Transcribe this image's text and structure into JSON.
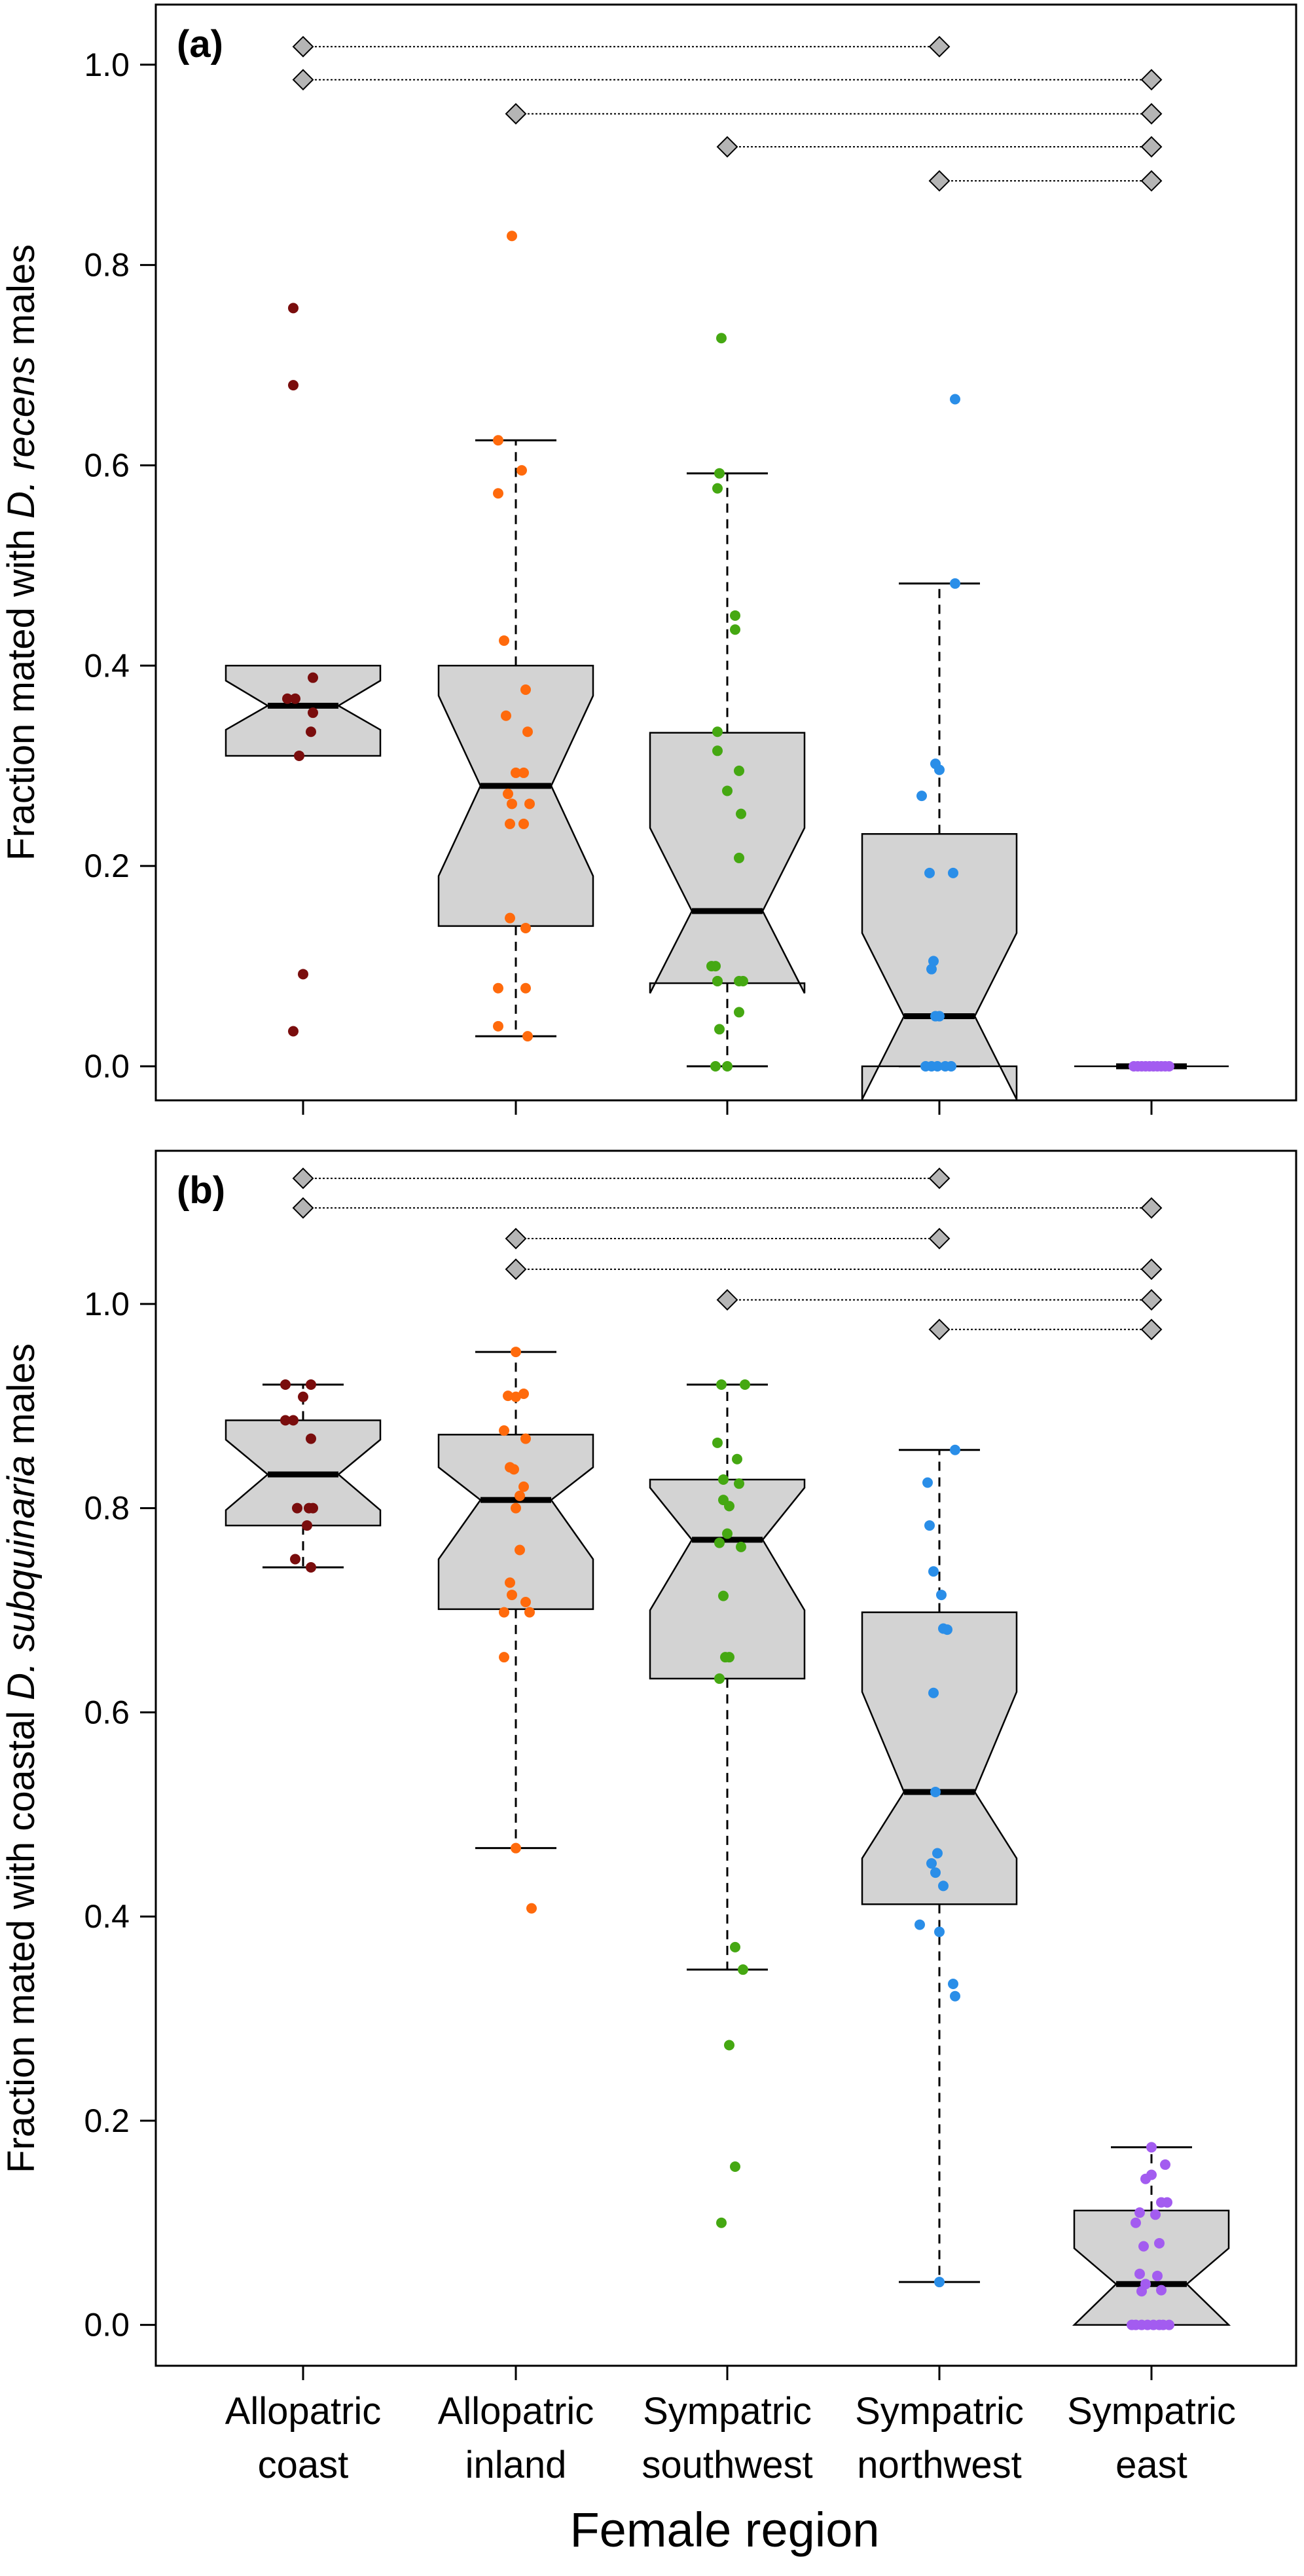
{
  "chart_data": {
    "type": "boxplot",
    "xlabel": "Female region",
    "categories": [
      {
        "line1": "Allopatric",
        "line2": "coast"
      },
      {
        "line1": "Allopatric",
        "line2": "inland"
      },
      {
        "line1": "Sympatric",
        "line2": "southwest"
      },
      {
        "line1": "Sympatric",
        "line2": "northwest"
      },
      {
        "line1": "Sympatric",
        "line2": "east"
      }
    ],
    "point_colors": [
      "#7a0d0d",
      "#ff6a0c",
      "#45a812",
      "#2a8ee8",
      "#a35cf0"
    ],
    "box_fill": "#d3d3d3",
    "panels": [
      {
        "tag": "(a)",
        "ylabel_parts": [
          "Fraction mated with ",
          "D. recens",
          " males"
        ],
        "ylim": [
          -0.034,
          1.06
        ],
        "yticks": [
          0.0,
          0.2,
          0.4,
          0.6,
          0.8,
          1.0
        ],
        "ytick_labels": [
          "0.0",
          "0.2",
          "0.4",
          "0.6",
          "0.8",
          "1.0"
        ],
        "boxes": [
          {
            "median": 0.36,
            "q1": 0.31,
            "q3": 0.4,
            "notch_lo": 0.336,
            "notch_hi": 0.385,
            "whisker_lo": null,
            "whisker_hi": null
          },
          {
            "median": 0.28,
            "q1": 0.14,
            "q3": 0.4,
            "notch_lo": 0.19,
            "notch_hi": 0.37,
            "whisker_lo": 0.03,
            "whisker_hi": 0.625
          },
          {
            "median": 0.155,
            "q1": 0.083,
            "q3": 0.333,
            "notch_lo": 0.073,
            "notch_hi": 0.238,
            "whisker_lo": 0.0,
            "whisker_hi": 0.592
          },
          {
            "median": 0.05,
            "q1": 0.0,
            "q3": 0.232,
            "notch_lo": -0.033,
            "notch_hi": 0.133,
            "whisker_lo": 0.0,
            "whisker_hi": 0.482
          },
          {
            "median": 0.0,
            "q1": 0.0,
            "q3": 0.0,
            "notch_lo": 0.0,
            "notch_hi": 0.0,
            "whisker_lo": null,
            "whisker_hi": null
          }
        ],
        "points": [
          [
            [
              -0.05,
              0.757
            ],
            [
              -0.05,
              0.68
            ],
            [
              0.05,
              0.388
            ],
            [
              -0.08,
              0.367
            ],
            [
              -0.04,
              0.367
            ],
            [
              0.05,
              0.353
            ],
            [
              0.04,
              0.334
            ],
            [
              -0.02,
              0.31
            ],
            [
              0.0,
              0.092
            ],
            [
              -0.05,
              0.035
            ]
          ],
          [
            [
              -0.02,
              0.829
            ],
            [
              -0.09,
              0.625
            ],
            [
              0.03,
              0.595
            ],
            [
              -0.09,
              0.572
            ],
            [
              -0.06,
              0.425
            ],
            [
              0.05,
              0.376
            ],
            [
              -0.05,
              0.35
            ],
            [
              0.06,
              0.334
            ],
            [
              0.0,
              0.293
            ],
            [
              0.04,
              0.293
            ],
            [
              -0.04,
              0.272
            ],
            [
              0.07,
              0.262
            ],
            [
              -0.02,
              0.262
            ],
            [
              0.04,
              0.242
            ],
            [
              -0.03,
              0.242
            ],
            [
              -0.03,
              0.148
            ],
            [
              0.05,
              0.138
            ],
            [
              0.05,
              0.078
            ],
            [
              -0.09,
              0.078
            ],
            [
              -0.09,
              0.04
            ],
            [
              0.06,
              0.03
            ]
          ],
          [
            [
              -0.03,
              0.727
            ],
            [
              -0.04,
              0.592
            ],
            [
              -0.05,
              0.577
            ],
            [
              0.04,
              0.45
            ],
            [
              0.04,
              0.436
            ],
            [
              -0.05,
              0.334
            ],
            [
              -0.05,
              0.315
            ],
            [
              0.06,
              0.295
            ],
            [
              0.0,
              0.275
            ],
            [
              0.07,
              0.252
            ],
            [
              0.06,
              0.208
            ],
            [
              -0.08,
              0.1
            ],
            [
              -0.06,
              0.1
            ],
            [
              -0.05,
              0.085
            ],
            [
              0.06,
              0.085
            ],
            [
              0.08,
              0.085
            ],
            [
              -0.05,
              0.085
            ],
            [
              0.06,
              0.054
            ],
            [
              -0.04,
              0.037
            ],
            [
              -0.06,
              0.0
            ],
            [
              0.0,
              0.0
            ]
          ],
          [
            [
              0.08,
              0.666
            ],
            [
              0.08,
              0.482
            ],
            [
              -0.02,
              0.302
            ],
            [
              0.0,
              0.296
            ],
            [
              -0.09,
              0.27
            ],
            [
              -0.05,
              0.193
            ],
            [
              0.07,
              0.193
            ],
            [
              -0.03,
              0.105
            ],
            [
              -0.04,
              0.097
            ],
            [
              0.0,
              0.05
            ],
            [
              -0.02,
              0.05
            ],
            [
              -0.07,
              0.0
            ],
            [
              -0.04,
              0.0
            ],
            [
              -0.01,
              0.0
            ],
            [
              0.03,
              0.0
            ],
            [
              0.06,
              0.0
            ]
          ],
          [
            [
              -0.09,
              0.0
            ],
            [
              -0.07,
              0.0
            ],
            [
              -0.05,
              0.0
            ],
            [
              -0.03,
              0.0
            ],
            [
              -0.01,
              0.0
            ],
            [
              0.01,
              0.0
            ],
            [
              0.03,
              0.0
            ],
            [
              0.05,
              0.0
            ],
            [
              0.07,
              0.0
            ],
            [
              0.09,
              0.0
            ]
          ]
        ],
        "comparisons": [
          {
            "from": 1,
            "to": 4,
            "y": 1.018
          },
          {
            "from": 1,
            "to": 5,
            "y": 0.985
          },
          {
            "from": 2,
            "to": 5,
            "y": 0.951
          },
          {
            "from": 3,
            "to": 5,
            "y": 0.918
          },
          {
            "from": 4,
            "to": 5,
            "y": 0.884
          }
        ]
      },
      {
        "tag": "(b)",
        "ylabel_parts": [
          "Fraction mated with coastal ",
          "D. subquinaria",
          " males"
        ],
        "ylim": [
          -0.04,
          1.15
        ],
        "yticks": [
          0.0,
          0.2,
          0.4,
          0.6,
          0.8,
          1.0
        ],
        "ytick_labels": [
          "0.0",
          "0.2",
          "0.4",
          "0.6",
          "0.8",
          "1.0"
        ],
        "boxes": [
          {
            "median": 0.833,
            "q1": 0.783,
            "q3": 0.886,
            "notch_lo": 0.798,
            "notch_hi": 0.867,
            "whisker_lo": 0.742,
            "whisker_hi": 0.921
          },
          {
            "median": 0.808,
            "q1": 0.701,
            "q3": 0.872,
            "notch_lo": 0.75,
            "notch_hi": 0.84,
            "whisker_lo": 0.467,
            "whisker_hi": 0.953
          },
          {
            "median": 0.769,
            "q1": 0.633,
            "q3": 0.828,
            "notch_lo": 0.7,
            "notch_hi": 0.82,
            "whisker_lo": 0.348,
            "whisker_hi": 0.921
          },
          {
            "median": 0.522,
            "q1": 0.412,
            "q3": 0.698,
            "notch_lo": 0.457,
            "notch_hi": 0.62,
            "whisker_lo": 0.042,
            "whisker_hi": 0.857
          },
          {
            "median": 0.04,
            "q1": 0.0,
            "q3": 0.112,
            "notch_lo": 0.0,
            "notch_hi": 0.075,
            "whisker_lo": null,
            "whisker_hi": 0.174
          }
        ],
        "points": [
          [
            [
              -0.09,
              0.921
            ],
            [
              0.04,
              0.921
            ],
            [
              0.0,
              0.909
            ],
            [
              -0.09,
              0.886
            ],
            [
              -0.05,
              0.886
            ],
            [
              0.04,
              0.868
            ],
            [
              -0.03,
              0.8
            ],
            [
              0.03,
              0.8
            ],
            [
              0.05,
              0.8
            ],
            [
              0.02,
              0.783
            ],
            [
              -0.04,
              0.75
            ],
            [
              0.04,
              0.742
            ]
          ],
          [
            [
              0.0,
              0.953
            ],
            [
              0.04,
              0.912
            ],
            [
              -0.04,
              0.91
            ],
            [
              0.0,
              0.909
            ],
            [
              -0.06,
              0.876
            ],
            [
              0.05,
              0.868
            ],
            [
              -0.03,
              0.84
            ],
            [
              -0.01,
              0.838
            ],
            [
              0.04,
              0.821
            ],
            [
              0.02,
              0.812
            ],
            [
              0.0,
              0.8
            ],
            [
              -0.03,
              0.727
            ],
            [
              0.02,
              0.759
            ],
            [
              -0.02,
              0.715
            ],
            [
              0.05,
              0.708
            ],
            [
              -0.06,
              0.698
            ],
            [
              0.07,
              0.698
            ],
            [
              -0.06,
              0.654
            ],
            [
              0.0,
              0.467
            ],
            [
              0.08,
              0.408
            ]
          ],
          [
            [
              -0.03,
              0.921
            ],
            [
              0.09,
              0.921
            ],
            [
              -0.05,
              0.864
            ],
            [
              0.05,
              0.848
            ],
            [
              -0.02,
              0.828
            ],
            [
              0.06,
              0.824
            ],
            [
              -0.02,
              0.808
            ],
            [
              0.01,
              0.802
            ],
            [
              0.0,
              0.775
            ],
            [
              -0.04,
              0.766
            ],
            [
              0.07,
              0.762
            ],
            [
              -0.02,
              0.714
            ],
            [
              -0.01,
              0.654
            ],
            [
              0.01,
              0.654
            ],
            [
              -0.04,
              0.633
            ],
            [
              0.04,
              0.37
            ],
            [
              0.08,
              0.348
            ],
            [
              0.01,
              0.274
            ],
            [
              0.04,
              0.155
            ],
            [
              -0.03,
              0.1
            ]
          ],
          [
            [
              0.08,
              0.857
            ],
            [
              -0.06,
              0.825
            ],
            [
              -0.05,
              0.783
            ],
            [
              -0.03,
              0.738
            ],
            [
              0.01,
              0.715
            ],
            [
              0.02,
              0.682
            ],
            [
              0.04,
              0.681
            ],
            [
              -0.03,
              0.619
            ],
            [
              -0.02,
              0.522
            ],
            [
              -0.04,
              0.452
            ],
            [
              -0.02,
              0.443
            ],
            [
              -0.01,
              0.462
            ],
            [
              0.02,
              0.43
            ],
            [
              -0.1,
              0.392
            ],
            [
              0.0,
              0.385
            ],
            [
              0.07,
              0.334
            ],
            [
              0.08,
              0.322
            ],
            [
              0.0,
              0.042
            ]
          ],
          [
            [
              0.0,
              0.174
            ],
            [
              0.07,
              0.157
            ],
            [
              -0.03,
              0.143
            ],
            [
              0.0,
              0.147
            ],
            [
              0.05,
              0.12
            ],
            [
              0.08,
              0.12
            ],
            [
              -0.06,
              0.11
            ],
            [
              0.02,
              0.108
            ],
            [
              -0.08,
              0.1
            ],
            [
              -0.04,
              0.077
            ],
            [
              0.04,
              0.08
            ],
            [
              -0.06,
              0.05
            ],
            [
              0.03,
              0.048
            ],
            [
              -0.05,
              0.033
            ],
            [
              -0.03,
              0.04
            ],
            [
              0.05,
              0.034
            ],
            [
              -0.1,
              0.0
            ],
            [
              -0.08,
              0.0
            ],
            [
              -0.05,
              0.0
            ],
            [
              -0.02,
              0.0
            ],
            [
              0.01,
              0.0
            ],
            [
              0.04,
              0.0
            ],
            [
              0.06,
              0.0
            ],
            [
              0.09,
              0.0
            ]
          ]
        ],
        "comparisons": [
          {
            "from": 1,
            "to": 4,
            "y": 1.123
          },
          {
            "from": 1,
            "to": 5,
            "y": 1.094
          },
          {
            "from": 2,
            "to": 4,
            "y": 1.064
          },
          {
            "from": 2,
            "to": 5,
            "y": 1.034
          },
          {
            "from": 3,
            "to": 5,
            "y": 1.004
          },
          {
            "from": 4,
            "to": 5,
            "y": 0.975
          }
        ]
      }
    ]
  }
}
